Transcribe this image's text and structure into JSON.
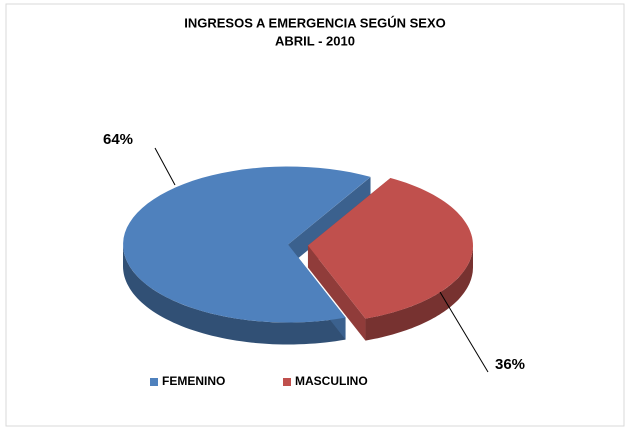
{
  "chart_data": {
    "type": "pie",
    "title": "INGRESOS A EMERGENCIA  SEGÚN SEXO",
    "subtitle": "ABRIL - 2010",
    "categories": [
      "FEMENINO",
      "MASCULINO"
    ],
    "values": [
      64,
      36
    ],
    "value_labels": [
      "64%",
      "36%"
    ],
    "colors": [
      "#4f81bd",
      "#c0504d"
    ],
    "legend": "bottom"
  }
}
